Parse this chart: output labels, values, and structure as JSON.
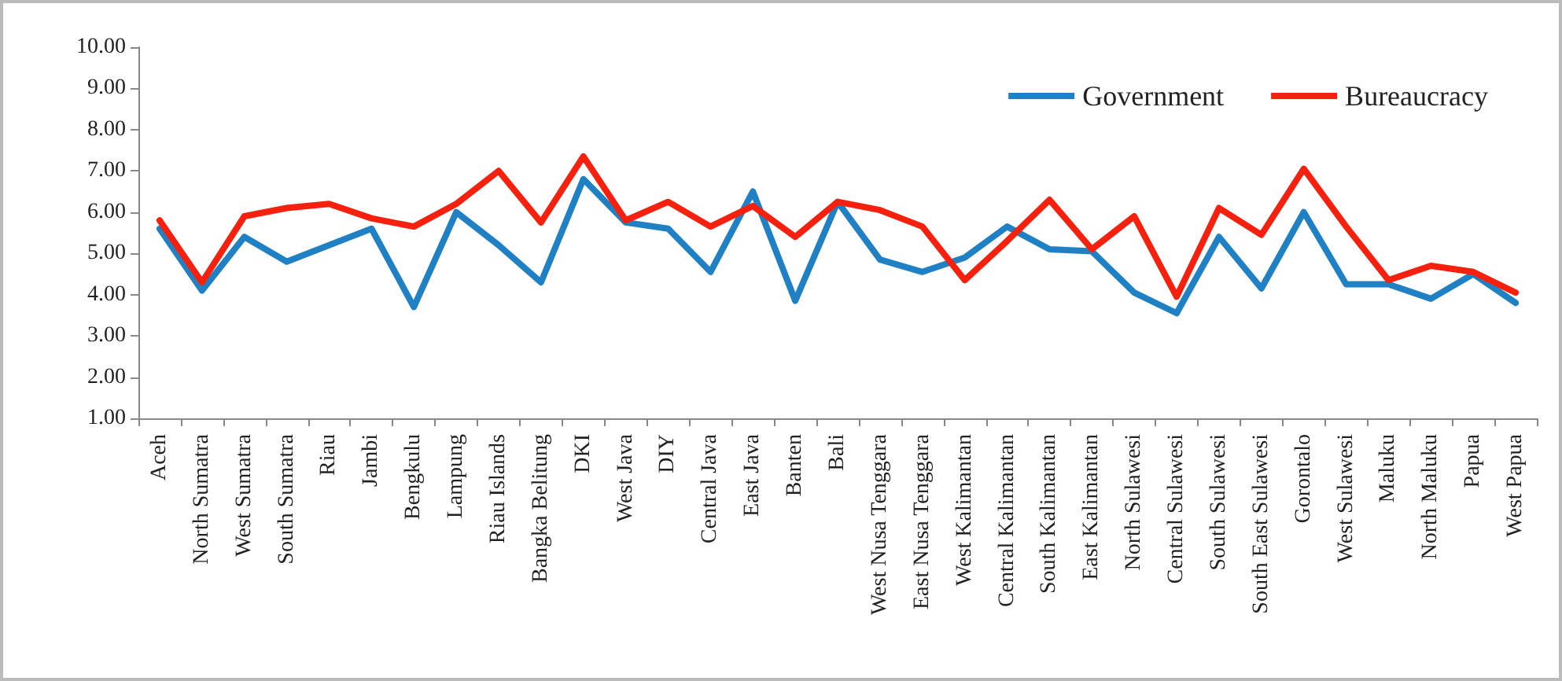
{
  "chart_data": {
    "type": "line",
    "categories": [
      "Aceh",
      "North Sumatra",
      "West Sumatra",
      "South Sumatra",
      "Riau",
      "Jambi",
      "Bengkulu",
      "Lampung",
      "Riau Islands",
      "Bangka Belitung",
      "DKI",
      "West Java",
      "DIY",
      "Central Java",
      "East Java",
      "Banten",
      "Bali",
      "West Nusa Tenggara",
      "East Nusa Tenggara",
      "West Kalimantan",
      "Central Kalimantan",
      "South Kalimantan",
      "East Kalimantan",
      "North Sulawesi",
      "Central Sulawesi",
      "South Sulawesi",
      "South East Sulawesi",
      "Gorontalo",
      "West Sulawesi",
      "Maluku",
      "North Maluku",
      "Papua",
      "West Papua"
    ],
    "series": [
      {
        "name": "Government",
        "color": "#1f80c4",
        "values": [
          5.6,
          4.1,
          5.4,
          4.8,
          5.2,
          5.6,
          3.7,
          6.0,
          5.2,
          4.3,
          6.8,
          5.75,
          5.6,
          4.55,
          6.5,
          3.85,
          6.25,
          4.85,
          4.55,
          4.9,
          5.65,
          5.1,
          5.05,
          4.05,
          3.55,
          5.4,
          4.15,
          6.0,
          4.25,
          4.25,
          3.9,
          4.5,
          3.8
        ]
      },
      {
        "name": "Bureaucracy",
        "color": "#f5200e",
        "values": [
          5.8,
          4.3,
          5.9,
          6.1,
          6.2,
          5.85,
          5.65,
          6.2,
          7.0,
          5.75,
          7.35,
          5.8,
          6.25,
          5.65,
          6.15,
          5.4,
          6.25,
          6.05,
          5.65,
          4.35,
          5.3,
          6.3,
          5.1,
          5.9,
          3.95,
          6.1,
          5.45,
          7.05,
          5.65,
          4.35,
          4.7,
          4.55,
          4.05
        ]
      }
    ],
    "ylim": [
      1,
      10
    ],
    "yticks": [
      {
        "value": 1,
        "label": "1.00"
      },
      {
        "value": 2,
        "label": "2.00"
      },
      {
        "value": 3,
        "label": "3.00"
      },
      {
        "value": 4,
        "label": "4.00"
      },
      {
        "value": 5,
        "label": "5.00"
      },
      {
        "value": 6,
        "label": "6.00"
      },
      {
        "value": 7,
        "label": "7.00"
      },
      {
        "value": 8,
        "label": "8.00"
      },
      {
        "value": 9,
        "label": "9.00"
      },
      {
        "value": 10,
        "label": "10.00"
      }
    ],
    "grid": false,
    "legend": "top right",
    "marker": "none",
    "line_style": "solid"
  }
}
